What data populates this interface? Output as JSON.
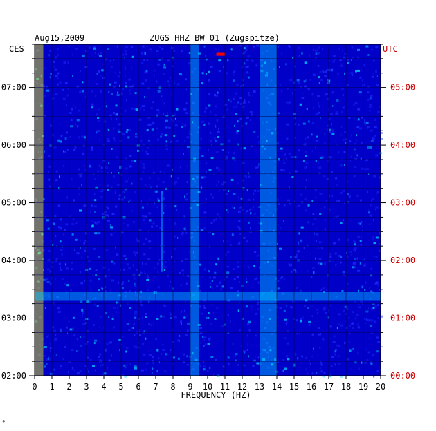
{
  "chart_data": {
    "type": "heatmap",
    "date": "Aug15,2009",
    "title": "ZUGS HHZ BW 01 (Zugspitze)",
    "xlabel": "FREQUENCY (HZ)",
    "xlim": [
      0,
      20
    ],
    "x_ticks": [
      "0",
      "1",
      "2",
      "3",
      "4",
      "5",
      "6",
      "7",
      "8",
      "9",
      "10",
      "11",
      "12",
      "13",
      "14",
      "15",
      "16",
      "17",
      "18",
      "19",
      "20"
    ],
    "left_axis_label": "CES",
    "right_axis_label": "UTC",
    "left_ticks": [
      "02:00",
      "03:00",
      "04:00",
      "05:00",
      "06:00",
      "07:00"
    ],
    "right_ticks": [
      "00:00",
      "01:00",
      "02:00",
      "03:00",
      "04:00",
      "05:00"
    ],
    "ylim_hours_local": [
      2,
      7.75
    ],
    "grid": true,
    "colors": {
      "background": "#0000c8",
      "low": "#1e28ff",
      "mid": "#00c8ff",
      "high": "#ffff00",
      "peak": "#ff0000",
      "utc_labels": "#cc0000"
    },
    "features": [
      {
        "frequency_hz": [
          0,
          0.5
        ],
        "hours_local": [
          2,
          7.75
        ],
        "intensity": "high"
      },
      {
        "frequency_hz": [
          13,
          14
        ],
        "hours_local": [
          2,
          7.75
        ],
        "intensity": "mid"
      },
      {
        "frequency_hz": [
          9,
          9.5
        ],
        "hours_local": [
          2,
          7.75
        ],
        "intensity": "mid"
      },
      {
        "frequency_hz": [
          7.3,
          7.4
        ],
        "hours_local": [
          3.8,
          5.2
        ],
        "intensity": "mid"
      },
      {
        "frequency_hz": [
          10.5,
          11
        ],
        "hours_local": [
          7.55,
          7.6
        ],
        "intensity": "peak"
      },
      {
        "frequency_hz": [
          0,
          20
        ],
        "hours_local": [
          3.3,
          3.45
        ],
        "intensity": "mid"
      }
    ]
  },
  "footer_mark": "*"
}
